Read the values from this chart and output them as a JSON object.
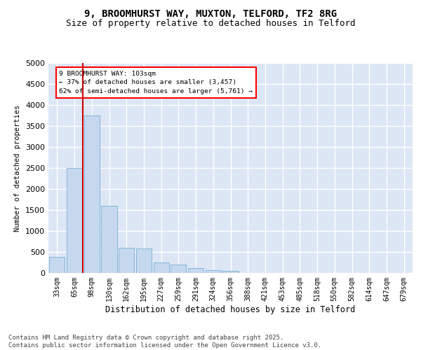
{
  "title_line1": "9, BROOMHURST WAY, MUXTON, TELFORD, TF2 8RG",
  "title_line2": "Size of property relative to detached houses in Telford",
  "xlabel": "Distribution of detached houses by size in Telford",
  "ylabel": "Number of detached properties",
  "categories": [
    "33sqm",
    "65sqm",
    "98sqm",
    "130sqm",
    "162sqm",
    "195sqm",
    "227sqm",
    "259sqm",
    "291sqm",
    "324sqm",
    "356sqm",
    "388sqm",
    "421sqm",
    "453sqm",
    "485sqm",
    "518sqm",
    "550sqm",
    "582sqm",
    "614sqm",
    "647sqm",
    "679sqm"
  ],
  "values": [
    380,
    2500,
    3750,
    1600,
    600,
    580,
    250,
    200,
    120,
    60,
    50,
    0,
    0,
    0,
    0,
    0,
    0,
    0,
    0,
    0,
    0
  ],
  "bar_color": "#c5d8ee",
  "bar_edgecolor": "#7bafd4",
  "background_color": "#ffffff",
  "plot_bg_color": "#dce6f5",
  "grid_color": "#ffffff",
  "vline_color": "#cc0000",
  "annotation_text": "9 BROOMHURST WAY: 103sqm\n← 37% of detached houses are smaller (3,457)\n62% of semi-detached houses are larger (5,761) →",
  "ylim": [
    0,
    5000
  ],
  "yticks": [
    0,
    500,
    1000,
    1500,
    2000,
    2500,
    3000,
    3500,
    4000,
    4500,
    5000
  ],
  "footnote1": "Contains HM Land Registry data © Crown copyright and database right 2025.",
  "footnote2": "Contains public sector information licensed under the Open Government Licence v3.0.",
  "title_fontsize": 10,
  "subtitle_fontsize": 9,
  "tick_fontsize": 7,
  "label_fontsize": 8.5,
  "footnote_fontsize": 6.5
}
